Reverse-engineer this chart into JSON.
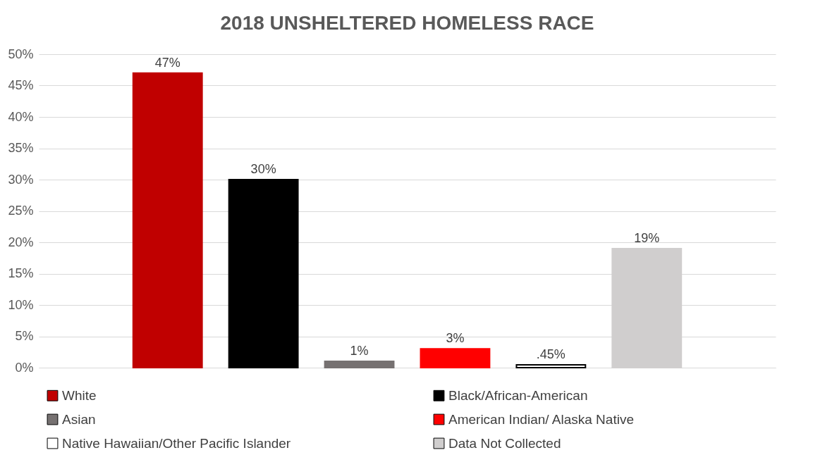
{
  "chart_data": {
    "type": "bar",
    "title": "2018 UNSHELTERED HOMELESS RACE",
    "categories": [
      null
    ],
    "series": [
      {
        "name": "White",
        "color": "#c00000",
        "values": [
          47
        ],
        "value_labels": [
          "47%"
        ]
      },
      {
        "name": "Black/African-American",
        "color": "#000000",
        "values": [
          30
        ],
        "value_labels": [
          "30%"
        ]
      },
      {
        "name": "Asian",
        "color": "#767171",
        "values": [
          1
        ],
        "value_labels": [
          "1%"
        ]
      },
      {
        "name": "American Indian/ Alaska Native",
        "color": "#ff0000",
        "values": [
          3
        ],
        "value_labels": [
          "3%"
        ]
      },
      {
        "name": "Native Hawaiian/Other Pacific Islander",
        "color": "#ffffff",
        "values": [
          0.45
        ],
        "value_labels": [
          ".45%"
        ]
      },
      {
        "name": "Data Not Collected",
        "color": "#d0cece",
        "values": [
          19
        ],
        "value_labels": [
          "19%"
        ]
      }
    ],
    "ylim": [
      0,
      50
    ],
    "yticks": [
      {
        "value": 0,
        "label": "0%"
      },
      {
        "value": 5,
        "label": "5%"
      },
      {
        "value": 10,
        "label": "10%"
      },
      {
        "value": 15,
        "label": "15%"
      },
      {
        "value": 20,
        "label": "20%"
      },
      {
        "value": 25,
        "label": "25%"
      },
      {
        "value": 30,
        "label": "30%"
      },
      {
        "value": 35,
        "label": "35%"
      },
      {
        "value": 40,
        "label": "40%"
      },
      {
        "value": 45,
        "label": "45%"
      },
      {
        "value": 50,
        "label": "50%"
      }
    ],
    "grid": "y",
    "legend": "bottom"
  }
}
